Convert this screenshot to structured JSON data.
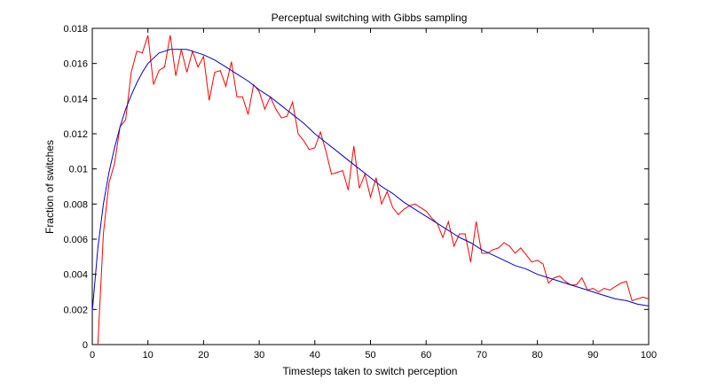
{
  "chart_data": {
    "type": "line",
    "title": "Perceptual switching with Gibbs sampling",
    "xlabel": "Timesteps taken to switch perception",
    "ylabel": "Fraction of switches",
    "xlim": [
      0,
      100
    ],
    "ylim": [
      0,
      0.018
    ],
    "xticks": [
      0,
      10,
      20,
      30,
      40,
      50,
      60,
      70,
      80,
      90,
      100
    ],
    "xtick_labels": [
      "0",
      "10",
      "20",
      "30",
      "40",
      "50",
      "60",
      "70",
      "80",
      "90",
      "100"
    ],
    "yticks": [
      0,
      0.002,
      0.004,
      0.006,
      0.008,
      0.01,
      0.012,
      0.014,
      0.016,
      0.018
    ],
    "ytick_labels": [
      "0",
      "0.002",
      "0.004",
      "0.006",
      "0.008",
      "0.01",
      "0.012",
      "0.014",
      "0.016",
      "0.018"
    ],
    "grid": false,
    "series": [
      {
        "color": "#ff0000",
        "x": [
          1,
          2,
          3,
          4,
          5,
          6,
          7,
          8,
          9,
          10,
          11,
          12,
          13,
          14,
          15,
          16,
          17,
          18,
          19,
          20,
          21,
          22,
          23,
          24,
          25,
          26,
          27,
          28,
          29,
          30,
          31,
          32,
          33,
          34,
          35,
          36,
          37,
          38,
          39,
          40,
          41,
          42,
          43,
          44,
          45,
          46,
          47,
          48,
          49,
          50,
          51,
          52,
          53,
          54,
          55,
          56,
          57,
          58,
          59,
          60,
          61,
          62,
          63,
          64,
          65,
          66,
          67,
          68,
          69,
          70,
          71,
          72,
          73,
          74,
          75,
          76,
          77,
          78,
          79,
          80,
          81,
          82,
          83,
          84,
          85,
          86,
          87,
          88,
          89,
          90,
          91,
          92,
          93,
          94,
          95,
          96,
          97,
          98,
          99,
          100
        ],
        "y": [
          0.0,
          0.0063,
          0.0092,
          0.0103,
          0.0124,
          0.0128,
          0.0155,
          0.0167,
          0.0166,
          0.0176,
          0.0148,
          0.0156,
          0.0158,
          0.0176,
          0.0153,
          0.0168,
          0.0155,
          0.0167,
          0.0158,
          0.0164,
          0.0139,
          0.0155,
          0.0156,
          0.0147,
          0.0161,
          0.0141,
          0.0141,
          0.0131,
          0.0148,
          0.0144,
          0.0134,
          0.0141,
          0.0134,
          0.0129,
          0.013,
          0.0138,
          0.012,
          0.0116,
          0.0111,
          0.0112,
          0.0121,
          0.011,
          0.0097,
          0.0098,
          0.0099,
          0.0088,
          0.0113,
          0.0089,
          0.0097,
          0.0084,
          0.0095,
          0.008,
          0.0087,
          0.0078,
          0.0074,
          0.0077,
          0.0079,
          0.008,
          0.0078,
          0.0076,
          0.0072,
          0.0069,
          0.0061,
          0.007,
          0.0056,
          0.0063,
          0.0063,
          0.0047,
          0.007,
          0.0052,
          0.0052,
          0.0054,
          0.0055,
          0.0058,
          0.0056,
          0.0052,
          0.0055,
          0.0051,
          0.0047,
          0.0048,
          0.0046,
          0.0035,
          0.0038,
          0.0039,
          0.0036,
          0.0034,
          0.0034,
          0.0038,
          0.0031,
          0.0032,
          0.003,
          0.0032,
          0.0031,
          0.0033,
          0.0035,
          0.0036,
          0.0025,
          0.0026,
          0.0027,
          0.0026
        ]
      },
      {
        "color": "#0000cc",
        "x": [
          0,
          1,
          2,
          3,
          4,
          5,
          6,
          7,
          8,
          9,
          10,
          11,
          12,
          13,
          14,
          15,
          16,
          17,
          18,
          19,
          20,
          22,
          24,
          26,
          28,
          30,
          32,
          34,
          36,
          38,
          40,
          42,
          44,
          46,
          48,
          50,
          52,
          54,
          56,
          58,
          60,
          62,
          64,
          66,
          68,
          70,
          72,
          74,
          76,
          78,
          80,
          82,
          84,
          86,
          88,
          90,
          92,
          94,
          96,
          98,
          100
        ],
        "y": [
          0.0019,
          0.0055,
          0.008,
          0.0098,
          0.0112,
          0.0124,
          0.0134,
          0.0142,
          0.0149,
          0.0155,
          0.016,
          0.0163,
          0.0166,
          0.0167,
          0.0168,
          0.0168,
          0.0168,
          0.0168,
          0.0167,
          0.0166,
          0.0165,
          0.0162,
          0.0158,
          0.0154,
          0.015,
          0.0145,
          0.0141,
          0.0136,
          0.0131,
          0.0126,
          0.012,
          0.0115,
          0.011,
          0.0105,
          0.01,
          0.0095,
          0.009,
          0.0086,
          0.0081,
          0.0077,
          0.0073,
          0.0069,
          0.0065,
          0.0061,
          0.0058,
          0.0054,
          0.0051,
          0.0048,
          0.0045,
          0.0043,
          0.004,
          0.0038,
          0.0036,
          0.0034,
          0.0032,
          0.003,
          0.0028,
          0.0026,
          0.0025,
          0.0023,
          0.0022
        ]
      }
    ]
  }
}
